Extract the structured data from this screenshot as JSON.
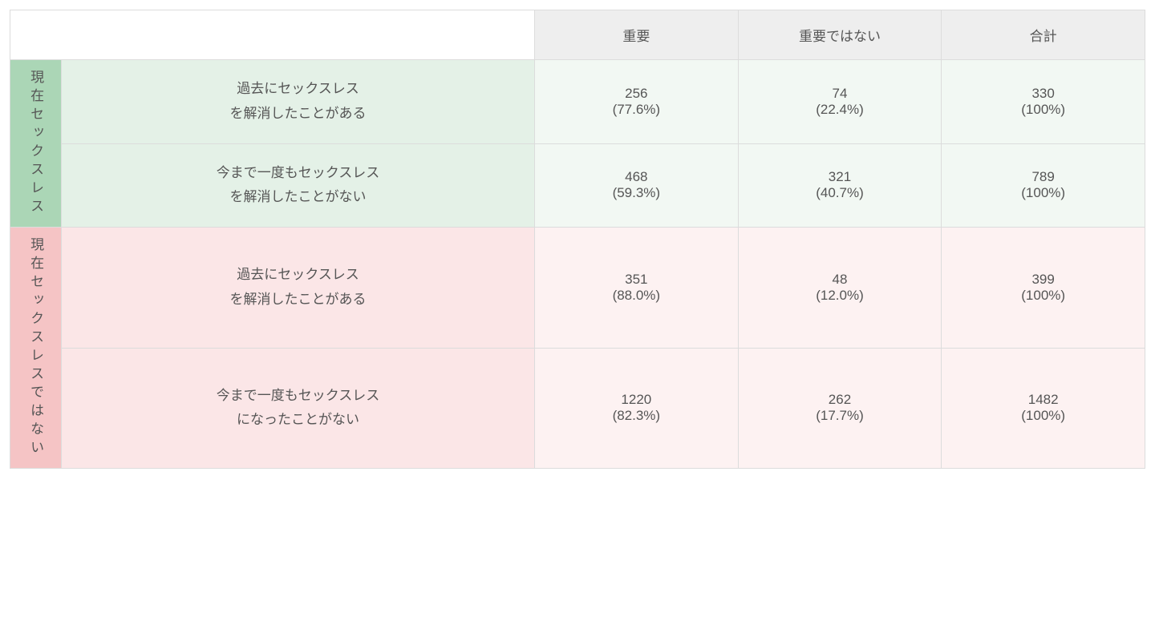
{
  "table": {
    "type": "table",
    "background_color": "#ffffff",
    "border_color": "#dcdcdc",
    "text_color": "#555555",
    "font_size_pt": 13,
    "columns": {
      "important": "重要",
      "not_important": "重要ではない",
      "total": "合計"
    },
    "header_bg": "#eeeeee",
    "groups": [
      {
        "label": "現在セックスレス",
        "head_bg": "#abd6b6",
        "sub_bg": "#e4f1e7",
        "cell_bg": "#f2f8f3",
        "rows": [
          {
            "label_line1": "過去にセックスレス",
            "label_line2": "を解消したことがある",
            "important": {
              "n": "256",
              "pct": "(77.6%)"
            },
            "not_important": {
              "n": "74",
              "pct": "(22.4%)"
            },
            "total": {
              "n": "330",
              "pct": "(100%)"
            }
          },
          {
            "label_line1": "今まで一度もセックスレス",
            "label_line2": "を解消したことがない",
            "important": {
              "n": "468",
              "pct": "(59.3%)"
            },
            "not_important": {
              "n": "321",
              "pct": "(40.7%)"
            },
            "total": {
              "n": "789",
              "pct": "(100%)"
            }
          }
        ]
      },
      {
        "label": "現在セックスレスではない",
        "head_bg": "#f5c4c5",
        "sub_bg": "#fbe6e7",
        "cell_bg": "#fdf2f2",
        "rows": [
          {
            "label_line1": "過去にセックスレス",
            "label_line2": "を解消したことがある",
            "important": {
              "n": "351",
              "pct": "(88.0%)"
            },
            "not_important": {
              "n": "48",
              "pct": "(12.0%)"
            },
            "total": {
              "n": "399",
              "pct": "(100%)"
            }
          },
          {
            "label_line1": "今まで一度もセックスレス",
            "label_line2": "になったことがない",
            "important": {
              "n": "1220",
              "pct": "(82.3%)"
            },
            "not_important": {
              "n": "262",
              "pct": "(17.7%)"
            },
            "total": {
              "n": "1482",
              "pct": "(100%)"
            }
          }
        ]
      }
    ]
  }
}
